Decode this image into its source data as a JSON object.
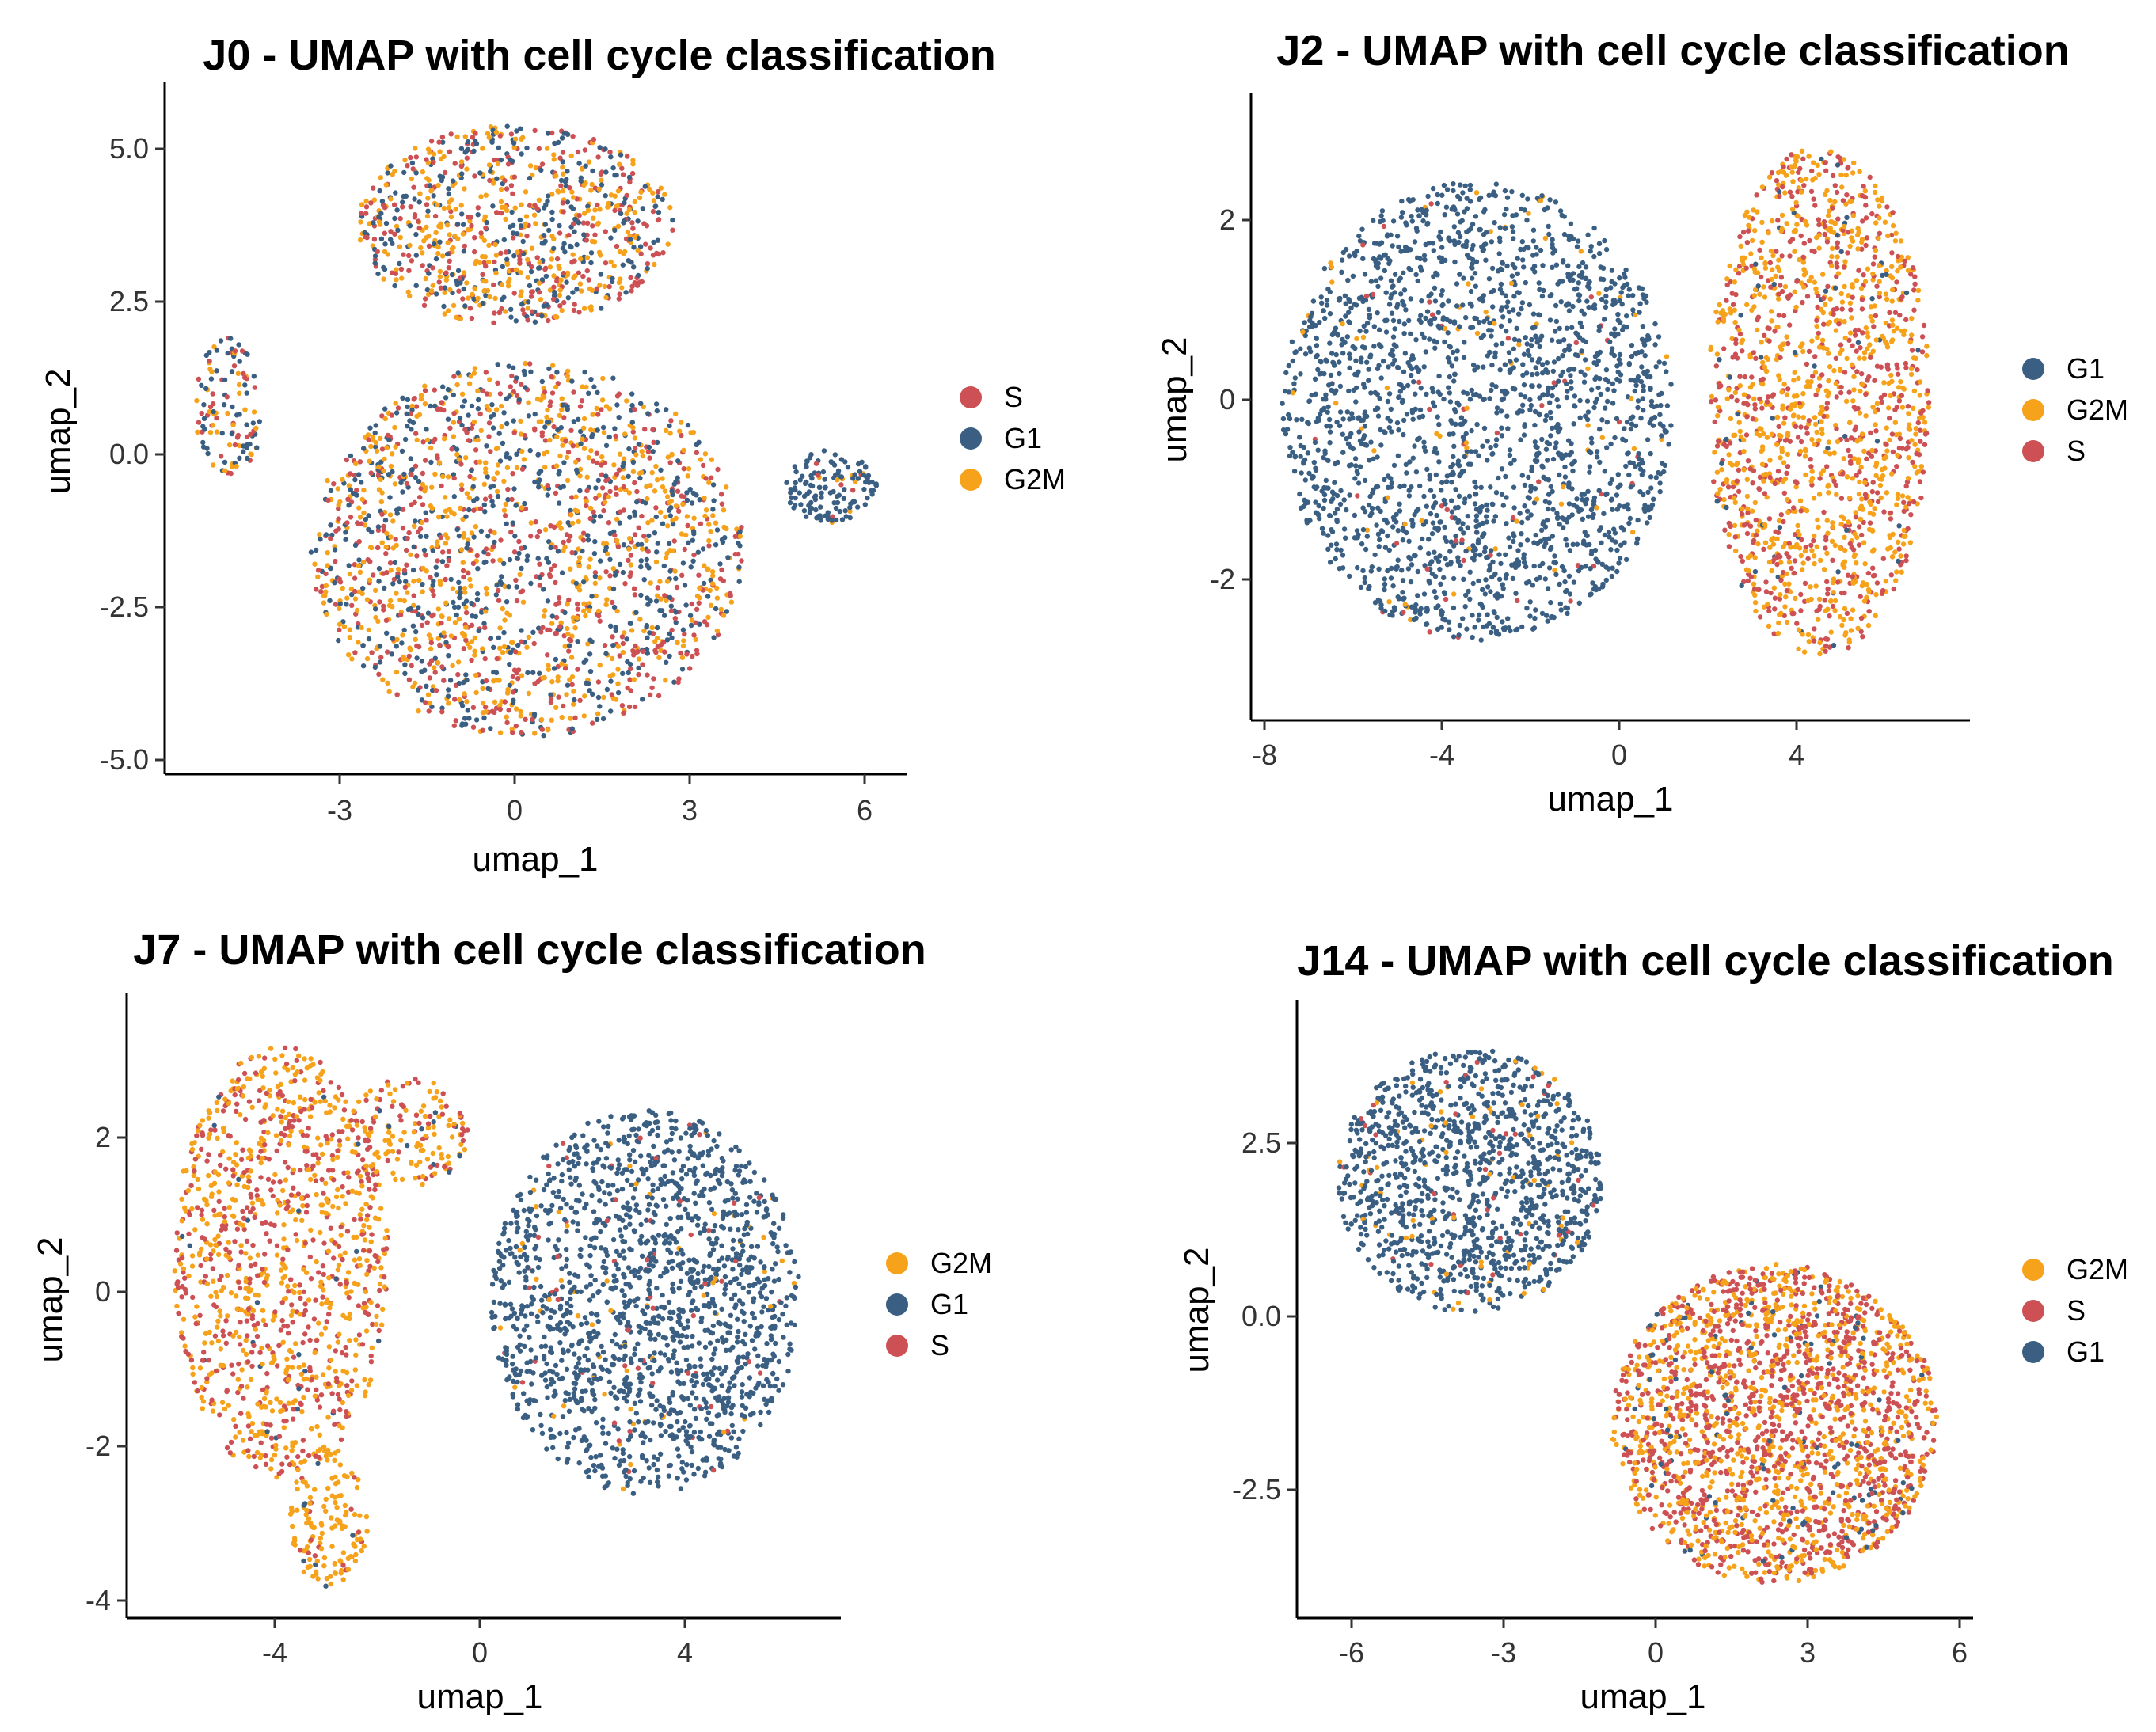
{
  "colors": {
    "S": "#cd5154",
    "G1": "#3a5f82",
    "G2M": "#f6a21a"
  },
  "chart_data": [
    {
      "type": "scatter",
      "title": "J0 - UMAP with cell cycle classification",
      "xlabel": "umap_1",
      "ylabel": "umap_2",
      "xlim": [
        -6,
        6.7
      ],
      "ylim": [
        -5.2,
        5.9
      ],
      "xticks": [
        -3,
        0,
        3,
        6
      ],
      "yticks": [
        -5.0,
        -2.5,
        0.0,
        2.5,
        5.0
      ],
      "xtick_labels": [
        "-3",
        "0",
        "3",
        "6"
      ],
      "ytick_labels": [
        "-5.0",
        "-2.5",
        "0.0",
        "2.5",
        "5.0"
      ],
      "legend_position": "right",
      "legend": [
        "S",
        "G1",
        "G2M"
      ],
      "series": [
        {
          "name": "S",
          "color": "#cd5154"
        },
        {
          "name": "G1",
          "color": "#3a5f82"
        },
        {
          "name": "G2M",
          "color": "#f6a21a"
        }
      ],
      "clusters": [
        {
          "cx": 0.0,
          "cy": 3.6,
          "rx": 2.7,
          "ry": 1.6,
          "n": 900,
          "mix": {
            "S": 0.3,
            "G1": 0.3,
            "G2M": 0.4
          }
        },
        {
          "cx": 0.2,
          "cy": -1.6,
          "rx": 3.7,
          "ry": 3.0,
          "n": 1900,
          "mix": {
            "S": 0.3,
            "G1": 0.35,
            "G2M": 0.35
          }
        },
        {
          "cx": -4.9,
          "cy": 0.7,
          "rx": 0.6,
          "ry": 1.1,
          "n": 120,
          "mix": {
            "S": 0.3,
            "G1": 0.4,
            "G2M": 0.3
          }
        },
        {
          "cx": 5.4,
          "cy": -0.6,
          "rx": 0.8,
          "ry": 0.6,
          "n": 140,
          "mix": {
            "S": 0.05,
            "G1": 0.9,
            "G2M": 0.05
          }
        }
      ]
    },
    {
      "type": "scatter",
      "title": "J2 - UMAP with cell cycle classification",
      "xlabel": "umap_1",
      "ylabel": "umap_2",
      "xlim": [
        -8.3,
        7.9
      ],
      "ylim": [
        -3.6,
        3.5
      ],
      "xticks": [
        -8,
        -4,
        0,
        4
      ],
      "yticks": [
        -2,
        0,
        2
      ],
      "xtick_labels": [
        "-8",
        "-4",
        "0",
        "4"
      ],
      "ytick_labels": [
        "-2",
        "0",
        "2"
      ],
      "legend_position": "right",
      "legend": [
        "G1",
        "G2M",
        "S"
      ],
      "series": [
        {
          "name": "G1",
          "color": "#3a5f82"
        },
        {
          "name": "G2M",
          "color": "#f6a21a"
        },
        {
          "name": "S",
          "color": "#cd5154"
        }
      ],
      "clusters": [
        {
          "cx": -3.2,
          "cy": -0.1,
          "rx": 4.4,
          "ry": 2.6,
          "n": 2100,
          "mix": {
            "S": 0.02,
            "G1": 0.95,
            "G2M": 0.03
          }
        },
        {
          "cx": 4.5,
          "cy": 0.0,
          "rx": 2.5,
          "ry": 2.9,
          "n": 1500,
          "mix": {
            "S": 0.4,
            "G1": 0.03,
            "G2M": 0.57
          }
        }
      ]
    },
    {
      "type": "scatter",
      "title": "J7 - UMAP with cell cycle classification",
      "xlabel": "umap_1",
      "ylabel": "umap_2",
      "xlim": [
        -6.9,
        7.0
      ],
      "ylim": [
        -4.2,
        3.9
      ],
      "xticks": [
        -4,
        0,
        4
      ],
      "yticks": [
        -4,
        -2,
        0,
        2
      ],
      "xtick_labels": [
        "-4",
        "0",
        "4"
      ],
      "ytick_labels": [
        "-4",
        "-2",
        "0",
        "2"
      ],
      "legend_position": "right",
      "legend": [
        "G2M",
        "G1",
        "S"
      ],
      "series": [
        {
          "name": "G2M",
          "color": "#f6a21a"
        },
        {
          "name": "G1",
          "color": "#3a5f82"
        },
        {
          "name": "S",
          "color": "#cd5154"
        }
      ],
      "clusters": [
        {
          "cx": -3.9,
          "cy": 0.4,
          "rx": 2.1,
          "ry": 2.8,
          "n": 1100,
          "mix": {
            "S": 0.45,
            "G1": 0.02,
            "G2M": 0.53
          }
        },
        {
          "cx": -3.0,
          "cy": -2.9,
          "rx": 0.8,
          "ry": 0.9,
          "n": 150,
          "mix": {
            "S": 0.15,
            "G1": 0.02,
            "G2M": 0.83
          }
        },
        {
          "cx": -1.4,
          "cy": 2.1,
          "rx": 1.2,
          "ry": 0.7,
          "n": 160,
          "mix": {
            "S": 0.3,
            "G1": 0.05,
            "G2M": 0.65
          }
        },
        {
          "cx": 3.2,
          "cy": -0.1,
          "rx": 3.0,
          "ry": 2.5,
          "n": 1700,
          "mix": {
            "S": 0.03,
            "G1": 0.94,
            "G2M": 0.03
          }
        }
      ]
    },
    {
      "type": "scatter",
      "title": "J14 - UMAP with cell cycle classification",
      "xlabel": "umap_1",
      "ylabel": "umap_2",
      "xlim": [
        -7.0,
        6.3
      ],
      "ylim": [
        -4.4,
        4.5
      ],
      "xticks": [
        -6,
        -3,
        0,
        3,
        6
      ],
      "yticks": [
        -2.5,
        0.0,
        2.5
      ],
      "xtick_labels": [
        "-6",
        "-3",
        "0",
        "3",
        "6"
      ],
      "ytick_labels": [
        "-2.5",
        "0.0",
        "2.5"
      ],
      "legend_position": "right",
      "legend": [
        "G2M",
        "S",
        "G1"
      ],
      "series": [
        {
          "name": "G2M",
          "color": "#f6a21a"
        },
        {
          "name": "S",
          "color": "#cd5154"
        },
        {
          "name": "G1",
          "color": "#3a5f82"
        }
      ],
      "clusters": [
        {
          "cx": -3.6,
          "cy": 1.9,
          "rx": 2.6,
          "ry": 1.9,
          "n": 1200,
          "mix": {
            "S": 0.03,
            "G1": 0.92,
            "G2M": 0.05
          }
        },
        {
          "cx": 2.4,
          "cy": -1.6,
          "rx": 3.2,
          "ry": 2.3,
          "n": 2100,
          "mix": {
            "S": 0.5,
            "G1": 0.05,
            "G2M": 0.45
          }
        }
      ]
    }
  ]
}
